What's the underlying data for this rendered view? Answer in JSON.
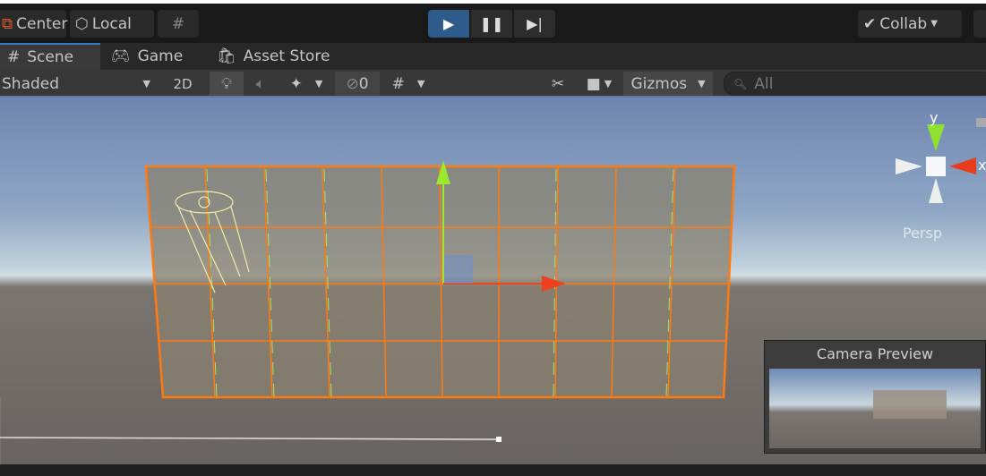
{
  "toolbar": {
    "pivot": "Center",
    "space": "Local",
    "collab": "Collab",
    "icons": [
      "pivot-icon",
      "local-cube-icon",
      "grid-snap-icon",
      "play-icon",
      "pause-icon",
      "step-icon",
      "collab-check-icon"
    ],
    "accent": "#3a79bb"
  },
  "tabs": [
    {
      "label": "Scene",
      "icon": "hash-icon",
      "active": true
    },
    {
      "label": "Game",
      "icon": "gamepad-icon"
    },
    {
      "label": "Asset Store",
      "icon": "bag-icon"
    }
  ],
  "scenebar": {
    "draw_mode": "Shaded",
    "mode2d": "2D",
    "hidden_count": "0",
    "gizmos": "Gizmos",
    "search_placeholder": "All"
  },
  "gizmo": {
    "y": "y",
    "x": "x",
    "projection": "Persp"
  },
  "preview": {
    "title": "Camera Preview"
  }
}
